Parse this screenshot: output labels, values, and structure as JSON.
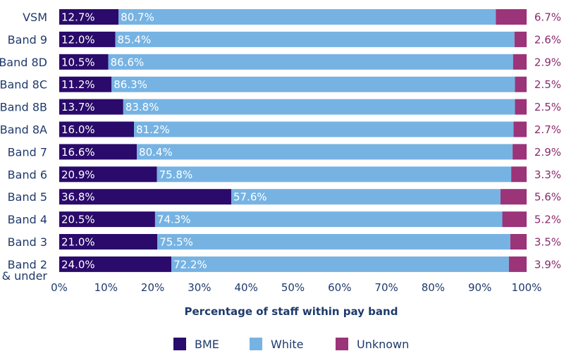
{
  "chart_data": {
    "type": "bar",
    "orientation": "horizontal",
    "stacked": true,
    "categories": [
      "VSM",
      "Band 9",
      "Band 8D",
      "Band 8C",
      "Band 8B",
      "Band 8A",
      "Band 7",
      "Band 6",
      "Band 5",
      "Band 4",
      "Band 3",
      "Band 2 & under"
    ],
    "category_lines": [
      [
        "VSM"
      ],
      [
        "Band 9"
      ],
      [
        "Band 8D"
      ],
      [
        "Band 8C"
      ],
      [
        "Band 8B"
      ],
      [
        "Band 8A"
      ],
      [
        "Band 7"
      ],
      [
        "Band 6"
      ],
      [
        "Band 5"
      ],
      [
        "Band 4"
      ],
      [
        "Band 3"
      ],
      [
        "Band 2",
        "& under"
      ]
    ],
    "series": [
      {
        "name": "BME",
        "color": "#2a0a6b",
        "values": [
          12.7,
          12.0,
          10.5,
          11.2,
          13.7,
          16.0,
          16.6,
          20.9,
          36.8,
          20.5,
          21.0,
          24.0
        ],
        "labels": [
          "12.7%",
          "12.0%",
          "10.5%",
          "11.2%",
          "13.7%",
          "16.0%",
          "16.6%",
          "20.9%",
          "36.8%",
          "20.5%",
          "21.0%",
          "24.0%"
        ]
      },
      {
        "name": "White",
        "color": "#76b3e3",
        "values": [
          80.7,
          85.4,
          86.6,
          86.3,
          83.8,
          81.2,
          80.4,
          75.8,
          57.6,
          74.3,
          75.5,
          72.2
        ],
        "labels": [
          "80.7%",
          "85.4%",
          "86.6%",
          "86.3%",
          "83.8%",
          "81.2%",
          "80.4%",
          "75.8%",
          "57.6%",
          "74.3%",
          "75.5%",
          "72.2%"
        ]
      },
      {
        "name": "Unknown",
        "color": "#9b3478",
        "values": [
          6.7,
          2.6,
          2.9,
          2.5,
          2.5,
          2.7,
          2.9,
          3.3,
          5.6,
          5.2,
          3.5,
          3.9
        ],
        "labels": [
          "6.7%",
          "2.6%",
          "2.9%",
          "2.5%",
          "2.5%",
          "2.7%",
          "2.9%",
          "3.3%",
          "5.6%",
          "5.2%",
          "3.5%",
          "3.9%"
        ]
      }
    ],
    "xlabel": "Percentage of staff within pay band",
    "xlim": [
      0,
      100
    ],
    "xticks": [
      "0%",
      "10%",
      "20%",
      "30%",
      "40%",
      "50%",
      "60%",
      "70%",
      "80%",
      "90%",
      "100%"
    ],
    "grid": false,
    "legend": "bottom"
  }
}
